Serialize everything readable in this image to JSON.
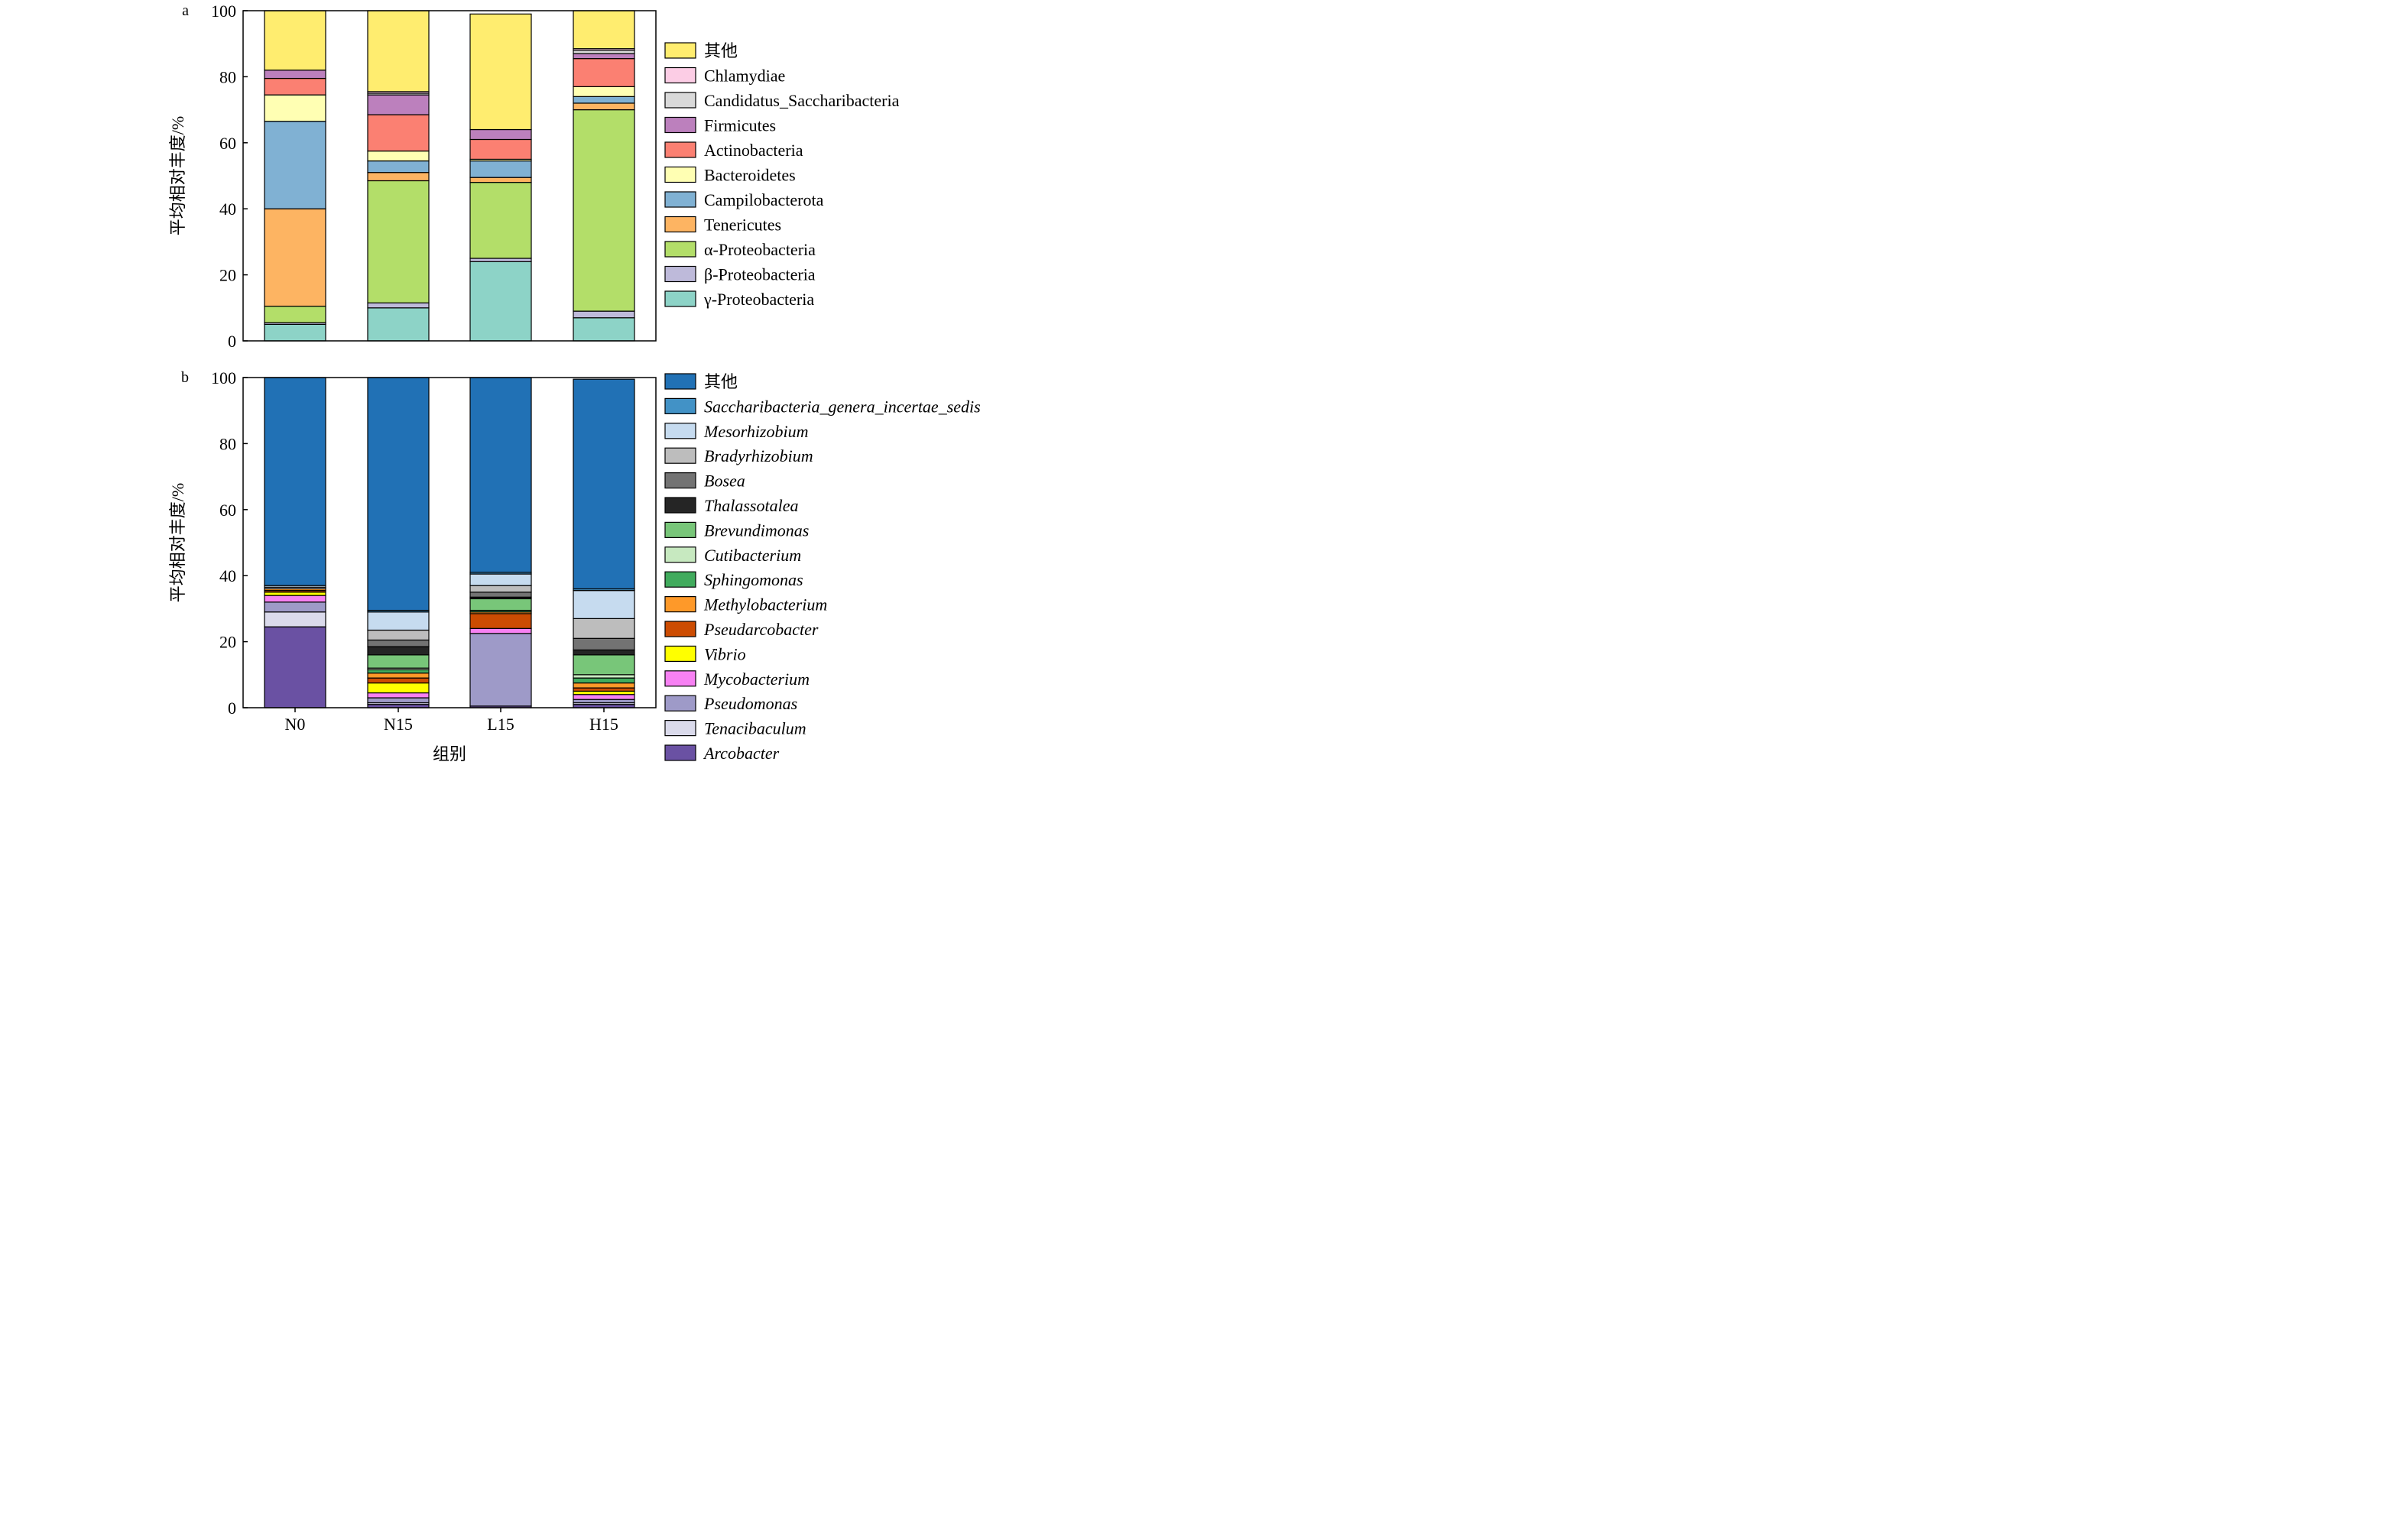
{
  "chart_data": [
    {
      "type": "bar",
      "stacked": true,
      "panel_label": "a",
      "categories": [
        "N0",
        "N15",
        "L15",
        "H15"
      ],
      "show_category_labels": false,
      "xlabel": "",
      "ylabel": "平均相对丰度/%",
      "ylim": [
        0,
        100
      ],
      "yticks": [
        0,
        20,
        40,
        60,
        80,
        100
      ],
      "grid": false,
      "legend_position": "right",
      "legend_italic": false,
      "series": [
        {
          "name": "γ-Proteobacteria",
          "color": "#8dd3c7",
          "values": [
            5.0,
            10.0,
            24.0,
            7.0
          ]
        },
        {
          "name": "β-Proteobacteria",
          "color": "#bebada",
          "values": [
            0.5,
            1.5,
            1.0,
            2.0
          ]
        },
        {
          "name": "α-Proteobacteria",
          "color": "#b3de69",
          "values": [
            5.0,
            37.0,
            23.0,
            61.0
          ]
        },
        {
          "name": "Tenericutes",
          "color": "#fdb462",
          "values": [
            29.5,
            2.5,
            1.5,
            2.0
          ]
        },
        {
          "name": "Campilobacterota",
          "color": "#80b1d3",
          "values": [
            26.5,
            3.5,
            5.0,
            2.0
          ]
        },
        {
          "name": "Bacteroidetes",
          "color": "#ffffb3",
          "values": [
            8.0,
            3.0,
            0.5,
            3.0
          ]
        },
        {
          "name": "Actinobacteria",
          "color": "#fb8072",
          "values": [
            5.0,
            11.0,
            6.0,
            8.5
          ]
        },
        {
          "name": "Firmicutes",
          "color": "#bc80bd",
          "values": [
            2.5,
            6.0,
            3.0,
            1.5
          ]
        },
        {
          "name": "Candidatus_Saccharibacteria",
          "color": "#d9d9d9",
          "values": [
            0.0,
            0.5,
            0.0,
            1.0
          ]
        },
        {
          "name": "Chlamydiae",
          "color": "#fccde5",
          "values": [
            0.0,
            0.5,
            0.0,
            0.5
          ]
        },
        {
          "name": "其他",
          "color": "#ffed6f",
          "values": [
            18.0,
            24.5,
            35.0,
            11.5
          ]
        }
      ]
    },
    {
      "type": "bar",
      "stacked": true,
      "panel_label": "b",
      "categories": [
        "N0",
        "N15",
        "L15",
        "H15"
      ],
      "show_category_labels": true,
      "xlabel": "组别",
      "ylabel": "平均相对丰度/%",
      "ylim": [
        0,
        100
      ],
      "yticks": [
        0,
        20,
        40,
        60,
        80,
        100
      ],
      "grid": false,
      "legend_position": "right",
      "legend_italic": true,
      "series": [
        {
          "name": "Arcobacter",
          "color": "#6a51a3",
          "values": [
            24.5,
            1.0,
            0.5,
            1.0
          ]
        },
        {
          "name": "Tenacibaculum",
          "color": "#dadaeb",
          "values": [
            4.5,
            0.5,
            0.0,
            0.5
          ]
        },
        {
          "name": "Pseudomonas",
          "color": "#9e9ac8",
          "values": [
            3.0,
            1.5,
            22.0,
            1.0
          ]
        },
        {
          "name": "Mycobacterium",
          "color": "#f781f3",
          "values": [
            2.0,
            1.5,
            1.5,
            1.5
          ]
        },
        {
          "name": "Vibrio",
          "color": "#ffff00",
          "values": [
            1.0,
            3.0,
            0.0,
            1.0
          ]
        },
        {
          "name": "Pseudarcobacter",
          "color": "#cc4c02",
          "values": [
            0.5,
            1.5,
            4.5,
            1.0
          ]
        },
        {
          "name": "Methylobacterium",
          "color": "#fe9929",
          "values": [
            0.5,
            1.5,
            0.5,
            1.5
          ]
        },
        {
          "name": "Sphingomonas",
          "color": "#41ab5d",
          "values": [
            0.0,
            1.0,
            0.5,
            1.5
          ]
        },
        {
          "name": "Cutibacterium",
          "color": "#c7e9c0",
          "values": [
            0.0,
            0.5,
            0.0,
            1.0
          ]
        },
        {
          "name": "Brevundimonas",
          "color": "#78c679",
          "values": [
            0.0,
            4.0,
            3.5,
            6.0
          ]
        },
        {
          "name": "Thalassotalea",
          "color": "#252525",
          "values": [
            0.0,
            2.5,
            0.5,
            1.5
          ]
        },
        {
          "name": "Bosea",
          "color": "#737373",
          "values": [
            0.0,
            2.0,
            1.5,
            3.5
          ]
        },
        {
          "name": "Bradyrhizobium",
          "color": "#bdbdbd",
          "values": [
            0.5,
            3.0,
            2.0,
            6.0
          ]
        },
        {
          "name": "Mesorhizobium",
          "color": "#c6dbef",
          "values": [
            0.5,
            5.5,
            3.5,
            8.5
          ]
        },
        {
          "name": "Saccharibacteria_genera_incertae_sedis",
          "color": "#4292c6",
          "values": [
            0.0,
            0.5,
            0.5,
            0.5
          ]
        },
        {
          "name": "其他",
          "color": "#2171b5",
          "values": [
            63.0,
            70.5,
            59.0,
            63.5
          ]
        }
      ]
    }
  ]
}
